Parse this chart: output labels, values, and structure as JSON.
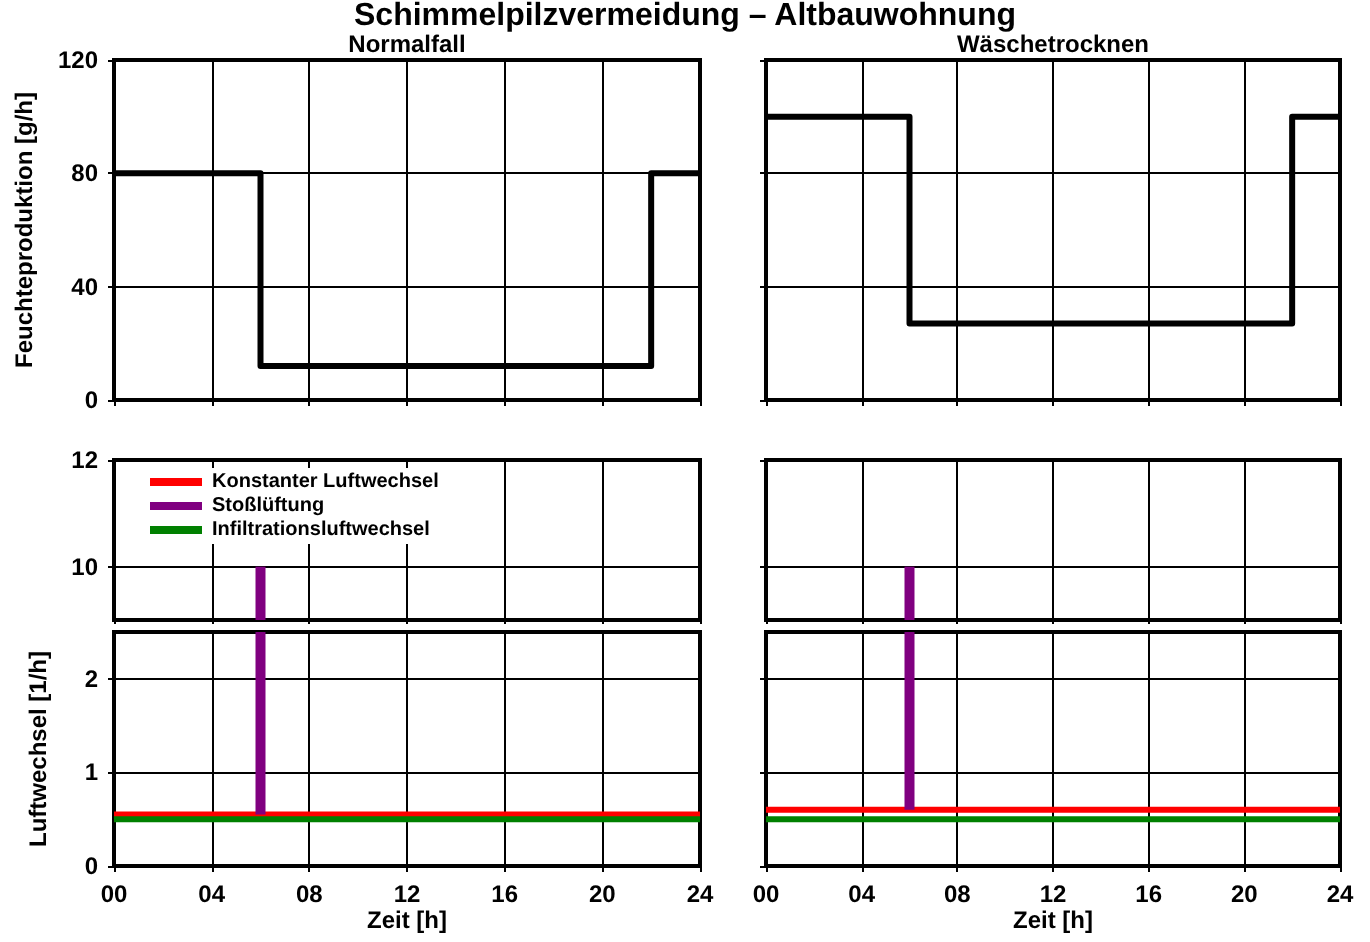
{
  "chart_data": [
    {
      "type": "other",
      "title": "Schimmelpilzvermeidung – Altbauwohnung"
    },
    {
      "type": "line",
      "title": "Normalfall",
      "ylabel": "Feuchteproduktion [g/h]",
      "x": [
        0,
        6,
        6,
        22,
        22,
        24
      ],
      "series": [
        {
          "color": "#000000",
          "values": [
            80,
            80,
            12,
            12,
            80,
            80
          ]
        }
      ],
      "xlim": [
        0,
        24
      ],
      "xticks": [
        0,
        4,
        8,
        12,
        16,
        20,
        24
      ],
      "ylim": [
        0,
        120
      ],
      "yticks": [
        0,
        40,
        80,
        120
      ],
      "grid": true,
      "tick_labels": "y"
    },
    {
      "type": "line",
      "title": "Wäschetrocknen",
      "x": [
        0,
        6,
        6,
        22,
        22,
        24
      ],
      "series": [
        {
          "color": "#000000",
          "values": [
            100,
            100,
            27,
            27,
            100,
            100
          ]
        }
      ],
      "xlim": [
        0,
        24
      ],
      "xticks": [
        0,
        4,
        8,
        12,
        16,
        20,
        24
      ],
      "ylim": [
        0,
        120
      ],
      "yticks": [
        0,
        40,
        80,
        120
      ],
      "grid": true,
      "tick_labels": false
    },
    {
      "type": "line",
      "series": [
        {
          "color": "#800080",
          "x": [
            6,
            6
          ],
          "values": [
            9,
            10
          ]
        }
      ],
      "xlim": [
        0,
        24
      ],
      "xticks": [
        0,
        4,
        8,
        12,
        16,
        20,
        24
      ],
      "ylim": [
        9,
        12
      ],
      "yticks": [
        10,
        12
      ],
      "grid": true,
      "tick_labels": "y"
    },
    {
      "type": "line",
      "xlabel": "Zeit [h]",
      "ylabel": "Luftwechsel [1/h]",
      "legend": "top left",
      "series": [
        {
          "name": "Konstanter Luftwechsel",
          "color": "#ff0000",
          "x": [
            0,
            24
          ],
          "values": [
            0.55,
            0.55
          ]
        },
        {
          "name": "Stoßlüftung",
          "color": "#800080",
          "x": [
            6,
            6
          ],
          "values": [
            0.55,
            2.5
          ]
        },
        {
          "name": "Infiltrationsluftwechsel",
          "color": "#008000",
          "x": [
            0,
            24
          ],
          "values": [
            0.5,
            0.5
          ]
        }
      ],
      "xlim": [
        0,
        24
      ],
      "xticks": [
        {
          "value": 0,
          "label": "00"
        },
        {
          "value": 4,
          "label": "04"
        },
        {
          "value": 8,
          "label": "08"
        },
        {
          "value": 12,
          "label": "12"
        },
        {
          "value": 16,
          "label": "16"
        },
        {
          "value": 20,
          "label": "20"
        },
        {
          "value": 24,
          "label": "24"
        }
      ],
      "ylim": [
        0,
        2.5
      ],
      "yticks": [
        0,
        1,
        2
      ],
      "grid": true
    },
    {
      "type": "line",
      "series": [
        {
          "color": "#800080",
          "x": [
            6,
            6
          ],
          "values": [
            9,
            10
          ]
        }
      ],
      "xlim": [
        0,
        24
      ],
      "xticks": [
        0,
        4,
        8,
        12,
        16,
        20,
        24
      ],
      "ylim": [
        9,
        12
      ],
      "yticks": [
        10,
        12
      ],
      "grid": true,
      "tick_labels": false
    },
    {
      "type": "line",
      "xlabel": "Zeit [h]",
      "series": [
        {
          "color": "#ff0000",
          "x": [
            0,
            24
          ],
          "values": [
            0.6,
            0.6
          ]
        },
        {
          "color": "#800080",
          "x": [
            6,
            6
          ],
          "values": [
            0.6,
            2.5
          ]
        },
        {
          "color": "#008000",
          "x": [
            0,
            24
          ],
          "values": [
            0.5,
            0.5
          ]
        }
      ],
      "xlim": [
        0,
        24
      ],
      "xticks": [
        {
          "value": 0,
          "label": "00"
        },
        {
          "value": 4,
          "label": "04"
        },
        {
          "value": 8,
          "label": "08"
        },
        {
          "value": 12,
          "label": "12"
        },
        {
          "value": 16,
          "label": "16"
        },
        {
          "value": 20,
          "label": "20"
        },
        {
          "value": 24,
          "label": "24"
        }
      ],
      "ylim": [
        0,
        2.5
      ],
      "yticks": [
        0,
        1,
        2
      ],
      "grid": true,
      "tick_labels": "x"
    }
  ]
}
